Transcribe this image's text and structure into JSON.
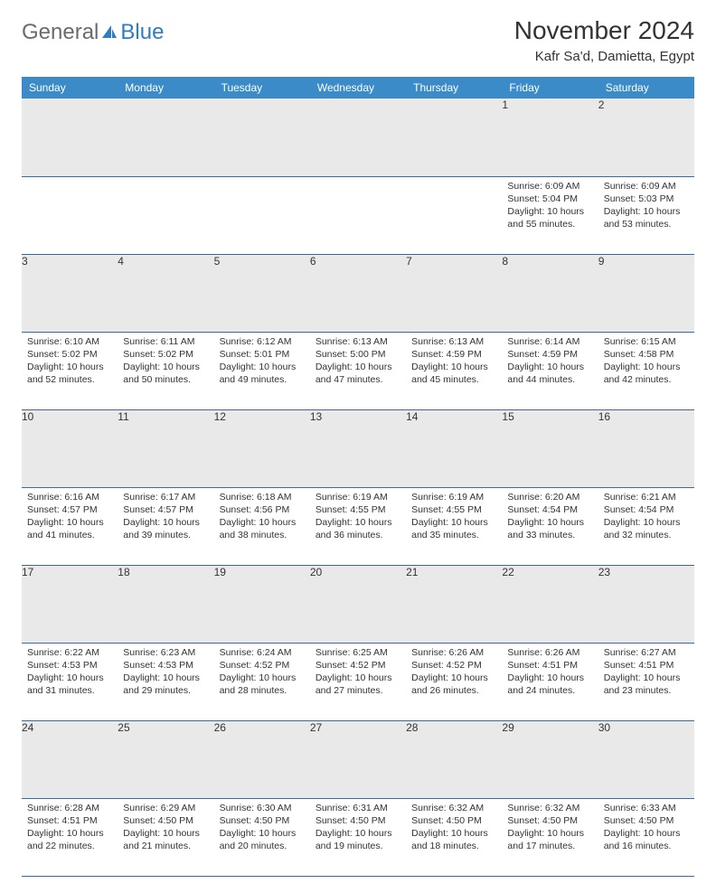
{
  "brand": {
    "general": "General",
    "blue": "Blue"
  },
  "title": "November 2024",
  "location": "Kafr Sa'd, Damietta, Egypt",
  "colors": {
    "header_bg": "#3b8bc8",
    "header_text": "#ffffff",
    "daynum_bg": "#e9e9e9",
    "row_border": "#3b6a9a",
    "logo_blue": "#2f7dc0",
    "logo_gray": "#6b6b6b"
  },
  "weekdays": [
    "Sunday",
    "Monday",
    "Tuesday",
    "Wednesday",
    "Thursday",
    "Friday",
    "Saturday"
  ],
  "weeks": [
    {
      "nums": [
        "",
        "",
        "",
        "",
        "",
        "1",
        "2"
      ],
      "cells": [
        null,
        null,
        null,
        null,
        null,
        {
          "sunrise": "Sunrise: 6:09 AM",
          "sunset": "Sunset: 5:04 PM",
          "daylight": "Daylight: 10 hours and 55 minutes."
        },
        {
          "sunrise": "Sunrise: 6:09 AM",
          "sunset": "Sunset: 5:03 PM",
          "daylight": "Daylight: 10 hours and 53 minutes."
        }
      ]
    },
    {
      "nums": [
        "3",
        "4",
        "5",
        "6",
        "7",
        "8",
        "9"
      ],
      "cells": [
        {
          "sunrise": "Sunrise: 6:10 AM",
          "sunset": "Sunset: 5:02 PM",
          "daylight": "Daylight: 10 hours and 52 minutes."
        },
        {
          "sunrise": "Sunrise: 6:11 AM",
          "sunset": "Sunset: 5:02 PM",
          "daylight": "Daylight: 10 hours and 50 minutes."
        },
        {
          "sunrise": "Sunrise: 6:12 AM",
          "sunset": "Sunset: 5:01 PM",
          "daylight": "Daylight: 10 hours and 49 minutes."
        },
        {
          "sunrise": "Sunrise: 6:13 AM",
          "sunset": "Sunset: 5:00 PM",
          "daylight": "Daylight: 10 hours and 47 minutes."
        },
        {
          "sunrise": "Sunrise: 6:13 AM",
          "sunset": "Sunset: 4:59 PM",
          "daylight": "Daylight: 10 hours and 45 minutes."
        },
        {
          "sunrise": "Sunrise: 6:14 AM",
          "sunset": "Sunset: 4:59 PM",
          "daylight": "Daylight: 10 hours and 44 minutes."
        },
        {
          "sunrise": "Sunrise: 6:15 AM",
          "sunset": "Sunset: 4:58 PM",
          "daylight": "Daylight: 10 hours and 42 minutes."
        }
      ]
    },
    {
      "nums": [
        "10",
        "11",
        "12",
        "13",
        "14",
        "15",
        "16"
      ],
      "cells": [
        {
          "sunrise": "Sunrise: 6:16 AM",
          "sunset": "Sunset: 4:57 PM",
          "daylight": "Daylight: 10 hours and 41 minutes."
        },
        {
          "sunrise": "Sunrise: 6:17 AM",
          "sunset": "Sunset: 4:57 PM",
          "daylight": "Daylight: 10 hours and 39 minutes."
        },
        {
          "sunrise": "Sunrise: 6:18 AM",
          "sunset": "Sunset: 4:56 PM",
          "daylight": "Daylight: 10 hours and 38 minutes."
        },
        {
          "sunrise": "Sunrise: 6:19 AM",
          "sunset": "Sunset: 4:55 PM",
          "daylight": "Daylight: 10 hours and 36 minutes."
        },
        {
          "sunrise": "Sunrise: 6:19 AM",
          "sunset": "Sunset: 4:55 PM",
          "daylight": "Daylight: 10 hours and 35 minutes."
        },
        {
          "sunrise": "Sunrise: 6:20 AM",
          "sunset": "Sunset: 4:54 PM",
          "daylight": "Daylight: 10 hours and 33 minutes."
        },
        {
          "sunrise": "Sunrise: 6:21 AM",
          "sunset": "Sunset: 4:54 PM",
          "daylight": "Daylight: 10 hours and 32 minutes."
        }
      ]
    },
    {
      "nums": [
        "17",
        "18",
        "19",
        "20",
        "21",
        "22",
        "23"
      ],
      "cells": [
        {
          "sunrise": "Sunrise: 6:22 AM",
          "sunset": "Sunset: 4:53 PM",
          "daylight": "Daylight: 10 hours and 31 minutes."
        },
        {
          "sunrise": "Sunrise: 6:23 AM",
          "sunset": "Sunset: 4:53 PM",
          "daylight": "Daylight: 10 hours and 29 minutes."
        },
        {
          "sunrise": "Sunrise: 6:24 AM",
          "sunset": "Sunset: 4:52 PM",
          "daylight": "Daylight: 10 hours and 28 minutes."
        },
        {
          "sunrise": "Sunrise: 6:25 AM",
          "sunset": "Sunset: 4:52 PM",
          "daylight": "Daylight: 10 hours and 27 minutes."
        },
        {
          "sunrise": "Sunrise: 6:26 AM",
          "sunset": "Sunset: 4:52 PM",
          "daylight": "Daylight: 10 hours and 26 minutes."
        },
        {
          "sunrise": "Sunrise: 6:26 AM",
          "sunset": "Sunset: 4:51 PM",
          "daylight": "Daylight: 10 hours and 24 minutes."
        },
        {
          "sunrise": "Sunrise: 6:27 AM",
          "sunset": "Sunset: 4:51 PM",
          "daylight": "Daylight: 10 hours and 23 minutes."
        }
      ]
    },
    {
      "nums": [
        "24",
        "25",
        "26",
        "27",
        "28",
        "29",
        "30"
      ],
      "cells": [
        {
          "sunrise": "Sunrise: 6:28 AM",
          "sunset": "Sunset: 4:51 PM",
          "daylight": "Daylight: 10 hours and 22 minutes."
        },
        {
          "sunrise": "Sunrise: 6:29 AM",
          "sunset": "Sunset: 4:50 PM",
          "daylight": "Daylight: 10 hours and 21 minutes."
        },
        {
          "sunrise": "Sunrise: 6:30 AM",
          "sunset": "Sunset: 4:50 PM",
          "daylight": "Daylight: 10 hours and 20 minutes."
        },
        {
          "sunrise": "Sunrise: 6:31 AM",
          "sunset": "Sunset: 4:50 PM",
          "daylight": "Daylight: 10 hours and 19 minutes."
        },
        {
          "sunrise": "Sunrise: 6:32 AM",
          "sunset": "Sunset: 4:50 PM",
          "daylight": "Daylight: 10 hours and 18 minutes."
        },
        {
          "sunrise": "Sunrise: 6:32 AM",
          "sunset": "Sunset: 4:50 PM",
          "daylight": "Daylight: 10 hours and 17 minutes."
        },
        {
          "sunrise": "Sunrise: 6:33 AM",
          "sunset": "Sunset: 4:50 PM",
          "daylight": "Daylight: 10 hours and 16 minutes."
        }
      ]
    }
  ]
}
